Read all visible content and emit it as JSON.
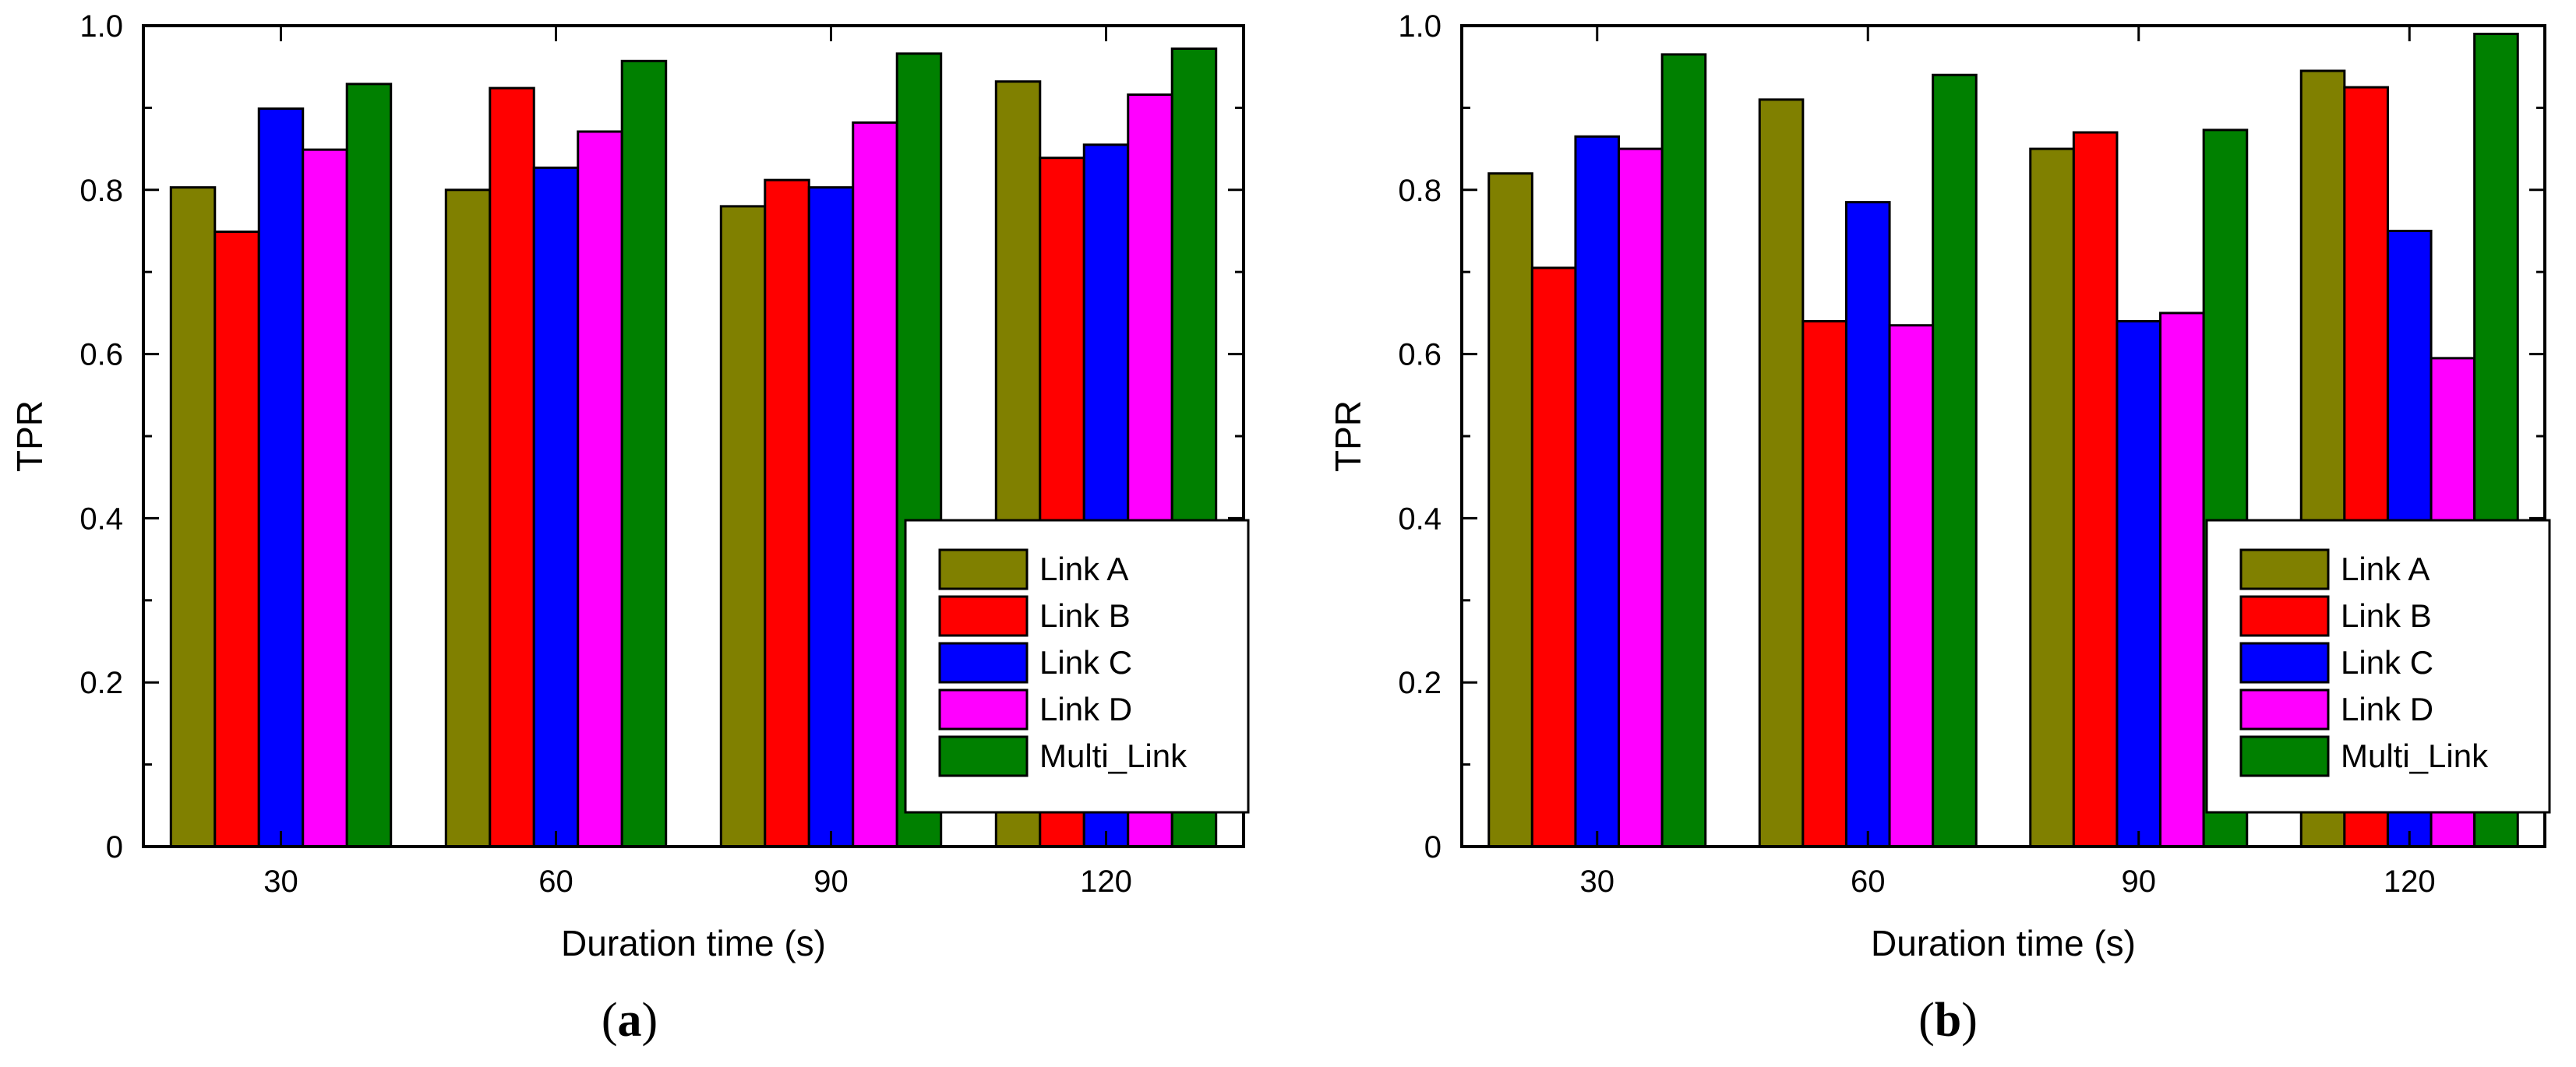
{
  "chart_data": [
    {
      "type": "bar",
      "panel_label": "(a)",
      "panel_letter": "a",
      "xlabel": "Duration time (s)",
      "ylabel": "TPR",
      "ylim": [
        0,
        1.0
      ],
      "yticks": [
        "0",
        "0.2",
        "0.4",
        "0.6",
        "0.8",
        "1.0"
      ],
      "categories": [
        "30",
        "60",
        "90",
        "120"
      ],
      "legend_position": "bottom-right",
      "series": [
        {
          "name": "Link A",
          "color": "#808000",
          "values": [
            0.803,
            0.8,
            0.78,
            0.932
          ]
        },
        {
          "name": "Link B",
          "color": "#ff0000",
          "values": [
            0.749,
            0.924,
            0.812,
            0.839
          ]
        },
        {
          "name": "Link C",
          "color": "#0000ff",
          "values": [
            0.899,
            0.827,
            0.803,
            0.855
          ]
        },
        {
          "name": "Link D",
          "color": "#ff00ff",
          "values": [
            0.849,
            0.871,
            0.882,
            0.916
          ]
        },
        {
          "name": "Multi_Link",
          "color": "#008000",
          "values": [
            0.929,
            0.957,
            0.966,
            0.972
          ]
        }
      ]
    },
    {
      "type": "bar",
      "panel_label": "(b)",
      "panel_letter": "b",
      "xlabel": "Duration time (s)",
      "ylabel": "TPR",
      "ylim": [
        0,
        1.0
      ],
      "yticks": [
        "0",
        "0.2",
        "0.4",
        "0.6",
        "0.8",
        "1.0"
      ],
      "categories": [
        "30",
        "60",
        "90",
        "120"
      ],
      "legend_position": "bottom-right",
      "series": [
        {
          "name": "Link A",
          "color": "#808000",
          "values": [
            0.82,
            0.91,
            0.85,
            0.945
          ]
        },
        {
          "name": "Link B",
          "color": "#ff0000",
          "values": [
            0.705,
            0.64,
            0.87,
            0.925
          ]
        },
        {
          "name": "Link C",
          "color": "#0000ff",
          "values": [
            0.865,
            0.785,
            0.64,
            0.75
          ]
        },
        {
          "name": "Link D",
          "color": "#ff00ff",
          "values": [
            0.85,
            0.635,
            0.65,
            0.595
          ]
        },
        {
          "name": "Multi_Link",
          "color": "#008000",
          "values": [
            0.965,
            0.94,
            0.873,
            0.99
          ]
        }
      ]
    }
  ]
}
